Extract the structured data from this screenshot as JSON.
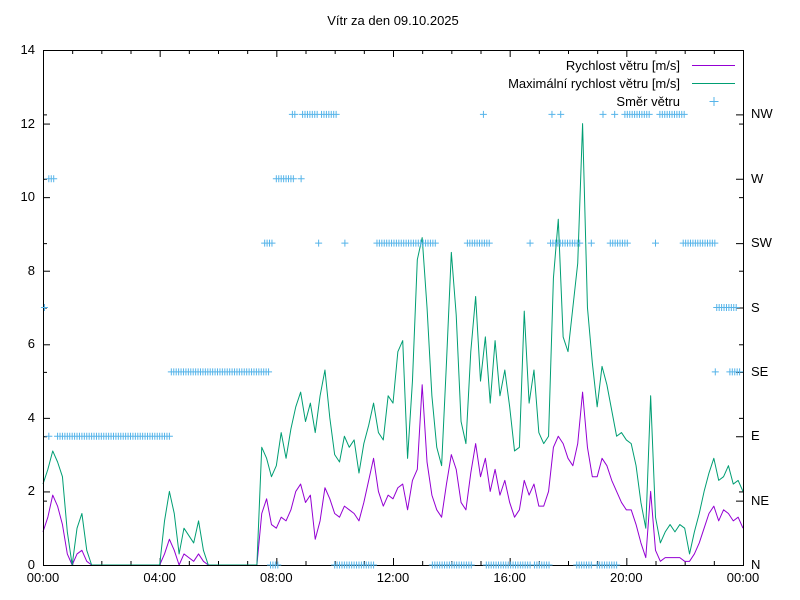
{
  "title": "Vítr za den 09.10.2025",
  "legend": [
    {
      "label": "Rychlost větru [m/s]",
      "sample": "line",
      "color": "#9400d3"
    },
    {
      "label": "Maximální rychlost větru [m/s]",
      "sample": "line",
      "color": "#009e73"
    },
    {
      "label": "Směr větru",
      "sample": "plus",
      "color": "#56b4e9"
    }
  ],
  "colors": {
    "avg_speed": "#9400d3",
    "max_speed": "#009e73",
    "direction": "#56b4e9",
    "axis": "#000000",
    "background": "#ffffff"
  },
  "chart_data": {
    "type": "line",
    "title": "Vítr za den 09.10.2025",
    "x_unit": "hours",
    "x_range_hours": [
      0,
      24
    ],
    "x_tick_hours": [
      0,
      4,
      8,
      12,
      16,
      20,
      24
    ],
    "x_tick_labels": [
      "00:00",
      "04:00",
      "08:00",
      "12:00",
      "16:00",
      "20:00",
      "00:00"
    ],
    "ylim": [
      0,
      14
    ],
    "ylabel": "",
    "y_ticks": [
      0,
      2,
      4,
      6,
      8,
      10,
      12,
      14
    ],
    "y2_labels": [
      "N",
      "NE",
      "E",
      "SE",
      "S",
      "SW",
      "W",
      "NW"
    ],
    "y2_levels": [
      0,
      1.75,
      3.5,
      5.25,
      7,
      8.75,
      10.5,
      12.25
    ],
    "grid": false,
    "legend_position": "top-right-inside",
    "time_step_hours": 0.166667,
    "series": [
      {
        "name": "Rychlost větru [m/s]",
        "color": "#9400d3",
        "values": [
          0.9,
          1.3,
          1.9,
          1.6,
          1.1,
          0.3,
          0,
          0.3,
          0.4,
          0.1,
          0,
          0,
          0,
          0,
          0,
          0,
          0,
          0,
          0,
          0,
          0,
          0,
          0,
          0,
          0,
          0.3,
          0.7,
          0.4,
          0,
          0.3,
          0.2,
          0.1,
          0.3,
          0.1,
          0,
          0,
          0,
          0,
          0,
          0,
          0,
          0,
          0,
          0,
          0,
          1.4,
          1.8,
          1.1,
          1.0,
          1.3,
          1.2,
          1.5,
          2.0,
          2.2,
          1.7,
          1.9,
          0.7,
          1.2,
          2.1,
          1.8,
          1.4,
          1.3,
          1.6,
          1.5,
          1.4,
          1.2,
          1.7,
          2.3,
          2.9,
          2.0,
          1.6,
          1.9,
          1.8,
          2.1,
          2.2,
          1.5,
          2.3,
          2.6,
          4.9,
          2.8,
          1.9,
          1.5,
          1.3,
          2.2,
          3.0,
          2.6,
          1.7,
          1.5,
          2.5,
          3.3,
          2.4,
          2.9,
          2.0,
          2.6,
          1.9,
          2.3,
          1.7,
          1.3,
          1.5,
          2.3,
          1.9,
          2.2,
          1.6,
          1.6,
          2.0,
          3.2,
          3.5,
          3.3,
          2.9,
          2.7,
          3.3,
          4.7,
          3.2,
          2.4,
          2.4,
          2.9,
          2.7,
          2.3,
          2.0,
          1.7,
          1.5,
          1.5,
          1.1,
          0.6,
          0.2,
          2.0,
          0.4,
          0.1,
          0.2,
          0.2,
          0.2,
          0.2,
          0.1,
          0.1,
          0.3,
          0.6,
          1.0,
          1.4,
          1.6,
          1.2,
          1.5,
          1.4,
          1.2,
          1.3,
          1.0
        ]
      },
      {
        "name": "Maximální rychlost větru [m/s]",
        "color": "#009e73",
        "values": [
          2.2,
          2.6,
          3.1,
          2.8,
          2.4,
          0.9,
          0,
          1.0,
          1.4,
          0.4,
          0,
          0,
          0,
          0,
          0,
          0,
          0,
          0,
          0,
          0,
          0,
          0,
          0,
          0,
          0,
          1.2,
          2.0,
          1.4,
          0.3,
          1.0,
          0.8,
          0.6,
          1.2,
          0.4,
          0,
          0,
          0,
          0,
          0,
          0,
          0,
          0,
          0,
          0,
          0,
          3.2,
          2.9,
          2.4,
          2.7,
          3.6,
          2.9,
          3.7,
          4.3,
          4.7,
          3.9,
          4.4,
          3.6,
          4.6,
          5.3,
          4.0,
          3.0,
          2.8,
          3.5,
          3.2,
          3.4,
          2.5,
          3.3,
          3.8,
          4.4,
          3.6,
          3.4,
          4.6,
          4.4,
          5.8,
          6.1,
          2.9,
          5.0,
          8.3,
          8.9,
          7.0,
          4.6,
          3.2,
          2.7,
          5.5,
          8.5,
          6.8,
          3.9,
          3.3,
          5.8,
          7.3,
          5.0,
          6.2,
          4.4,
          6.1,
          4.6,
          5.3,
          4.3,
          3.1,
          3.2,
          6.9,
          4.4,
          5.3,
          3.6,
          3.3,
          3.5,
          7.8,
          9.4,
          6.2,
          5.8,
          7.0,
          8.2,
          12.0,
          7.0,
          5.5,
          4.3,
          5.4,
          4.9,
          4.2,
          3.5,
          3.6,
          3.4,
          3.3,
          2.7,
          1.7,
          1.0,
          4.6,
          1.3,
          0.6,
          0.9,
          1.1,
          0.9,
          1.1,
          1.0,
          0.3,
          0.9,
          1.4,
          2.0,
          2.5,
          2.9,
          2.3,
          2.4,
          2.7,
          2.2,
          2.3,
          2.0
        ]
      }
    ],
    "direction_series": {
      "name": "Směr větru",
      "color": "#56b4e9",
      "marker": "+",
      "marker_step_hours": 0.0833,
      "runs": [
        {
          "dir": "S",
          "from": 0.05,
          "to": 0.05
        },
        {
          "dir": "W",
          "from": 0.2,
          "to": 0.4
        },
        {
          "dir": "E",
          "from": 0.2,
          "to": 0.2
        },
        {
          "dir": "E",
          "from": 0.5,
          "to": 4.35
        },
        {
          "dir": "SE",
          "from": 4.4,
          "to": 7.8
        },
        {
          "dir": "SW",
          "from": 7.6,
          "to": 7.85
        },
        {
          "dir": "N",
          "from": 7.8,
          "to": 8.05
        },
        {
          "dir": "W",
          "from": 8.0,
          "to": 8.6
        },
        {
          "dir": "W",
          "from": 8.85,
          "to": 8.85
        },
        {
          "dir": "NW",
          "from": 8.55,
          "to": 8.7
        },
        {
          "dir": "NW",
          "from": 8.9,
          "to": 9.4
        },
        {
          "dir": "SW",
          "from": 9.45,
          "to": 9.45
        },
        {
          "dir": "NW",
          "from": 9.55,
          "to": 10.1
        },
        {
          "dir": "N",
          "from": 10.0,
          "to": 11.4
        },
        {
          "dir": "SW",
          "from": 10.35,
          "to": 10.35
        },
        {
          "dir": "SW",
          "from": 11.45,
          "to": 13.5
        },
        {
          "dir": "N",
          "from": 13.35,
          "to": 14.7
        },
        {
          "dir": "SW",
          "from": 14.55,
          "to": 15.3
        },
        {
          "dir": "NW",
          "from": 15.1,
          "to": 15.1
        },
        {
          "dir": "N",
          "from": 15.2,
          "to": 16.7
        },
        {
          "dir": "SW",
          "from": 16.7,
          "to": 16.75
        },
        {
          "dir": "N",
          "from": 16.85,
          "to": 17.4
        },
        {
          "dir": "SW",
          "from": 17.4,
          "to": 18.4
        },
        {
          "dir": "NW",
          "from": 17.45,
          "to": 17.5
        },
        {
          "dir": "NW",
          "from": 17.75,
          "to": 17.75
        },
        {
          "dir": "N",
          "from": 18.3,
          "to": 18.85
        },
        {
          "dir": "SW",
          "from": 18.8,
          "to": 18.85
        },
        {
          "dir": "N",
          "from": 19.0,
          "to": 19.7
        },
        {
          "dir": "NW",
          "from": 19.2,
          "to": 19.25
        },
        {
          "dir": "NW",
          "from": 19.6,
          "to": 19.6
        },
        {
          "dir": "SW",
          "from": 19.45,
          "to": 20.1
        },
        {
          "dir": "NW",
          "from": 19.95,
          "to": 20.85
        },
        {
          "dir": "SW",
          "from": 21.0,
          "to": 21.0
        },
        {
          "dir": "NW",
          "from": 21.15,
          "to": 22.0
        },
        {
          "dir": "SW",
          "from": 21.95,
          "to": 23.1
        },
        {
          "dir": "SE",
          "from": 23.05,
          "to": 23.05
        },
        {
          "dir": "S",
          "from": 23.1,
          "to": 23.8
        },
        {
          "dir": "SE",
          "from": 23.55,
          "to": 23.95
        }
      ]
    }
  }
}
